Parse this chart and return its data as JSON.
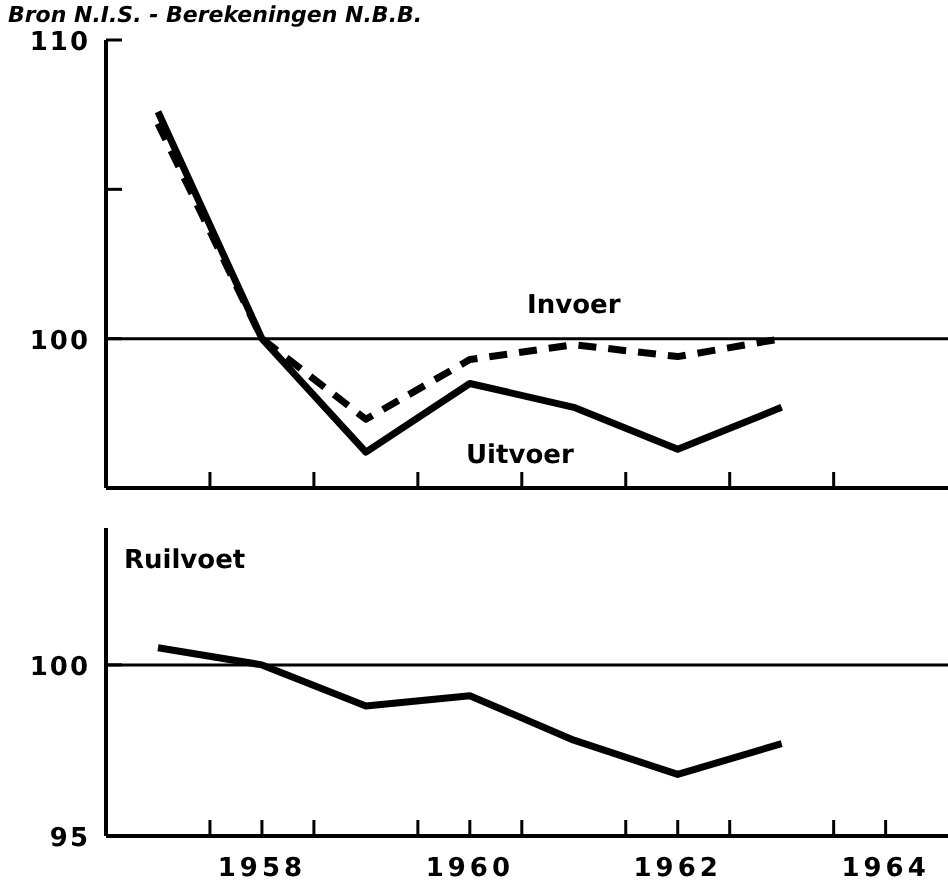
{
  "chart_data": [
    {
      "type": "line",
      "annotations": [
        "Bron N.I.S. - Berekeningen N.B.B."
      ],
      "x": [
        1957,
        1958,
        1959,
        1960,
        1961,
        1962,
        1963
      ],
      "series": [
        {
          "name": "Invoer",
          "color": "#000000",
          "line_style": "dashed",
          "values": [
            107.2,
            100,
            97.3,
            99.3,
            99.8,
            99.4,
            100
          ]
        },
        {
          "name": "Uitvoer",
          "color": "#000000",
          "line_style": "solid",
          "values": [
            107.6,
            100,
            96.2,
            98.5,
            97.7,
            96.3,
            97.7
          ]
        }
      ],
      "xlim": [
        1956.5,
        1964.6
      ],
      "xticks": [
        {
          "value": 1957.5,
          "label": null
        },
        {
          "value": 1958.5,
          "label": null
        },
        {
          "value": 1959.5,
          "label": null
        },
        {
          "value": 1960.5,
          "label": null
        },
        {
          "value": 1961.5,
          "label": null
        },
        {
          "value": 1962.5,
          "label": null
        },
        {
          "value": 1963.5,
          "label": null
        }
      ],
      "ylim": [
        95,
        110
      ],
      "yticks": [
        {
          "value": 100,
          "label": "100"
        },
        {
          "value": 105,
          "label": null
        },
        {
          "value": 110,
          "label": "110"
        }
      ],
      "ref_lines": [
        {
          "axis": "y",
          "value": 100,
          "color": "#000000"
        }
      ],
      "tick_labels": "y",
      "legend": false,
      "grid": false,
      "marker": "none"
    },
    {
      "type": "line",
      "title": "Ruilvoet",
      "x": [
        1957,
        1958,
        1959,
        1960,
        1961,
        1962,
        1963
      ],
      "series": [
        {
          "color": "#000000",
          "line_style": "solid",
          "values": [
            100.5,
            100,
            98.8,
            99.1,
            97.8,
            96.8,
            97.7
          ]
        }
      ],
      "xlim": [
        1956.5,
        1964.6
      ],
      "xticks": [
        {
          "value": 1957.5,
          "label": null
        },
        {
          "value": 1958,
          "label": "1958"
        },
        {
          "value": 1958.5,
          "label": null
        },
        {
          "value": 1959.5,
          "label": null
        },
        {
          "value": 1960,
          "label": "1960"
        },
        {
          "value": 1960.5,
          "label": null
        },
        {
          "value": 1961.5,
          "label": null
        },
        {
          "value": 1962,
          "label": "1962"
        },
        {
          "value": 1962.5,
          "label": null
        },
        {
          "value": 1963.5,
          "label": null
        },
        {
          "value": 1964,
          "label": "1964"
        }
      ],
      "ylim": [
        95,
        104
      ],
      "yticks": [
        {
          "value": 95,
          "label": "95"
        },
        {
          "value": 100,
          "label": "100"
        }
      ],
      "ref_lines": [
        {
          "axis": "y",
          "value": 100,
          "color": "#000000"
        }
      ],
      "legend": false,
      "grid": false,
      "marker": "none"
    }
  ]
}
